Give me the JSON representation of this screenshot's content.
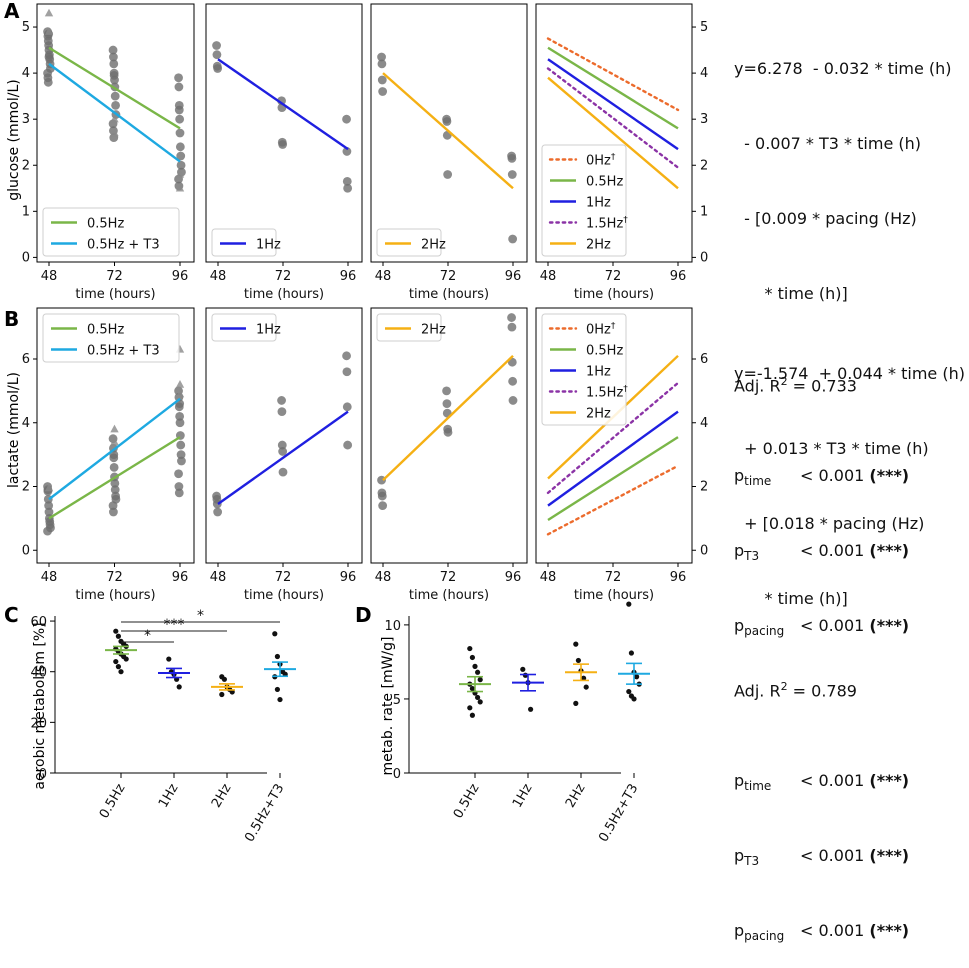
{
  "colors": {
    "c05": "#7ab648",
    "cT3": "#1ea9e1",
    "c1": "#1f1fe0",
    "c2": "#f5b014",
    "c0": "#ec6b2c",
    "c15": "#8b33a6",
    "point": "#6e6e6e"
  },
  "panels": {
    "A": {
      "label": "A",
      "ylabel": "glucose (mmol/L)"
    },
    "B": {
      "label": "B",
      "ylabel": "lactate (mmol/L)"
    },
    "C": {
      "label": "C",
      "ylabel": "aerobic metabolism [%]"
    },
    "D": {
      "label": "D",
      "ylabel": "metab. rate [mW/g]"
    }
  },
  "equations": {
    "A": {
      "lines": [
        "y=6.278  - 0.032 * time (h)",
        "  - 0.007 * T3 * time (h)",
        "  - [0.009 * pacing (Hz)",
        "      * time (h)]"
      ],
      "r2_prefix": "Adj. R",
      "r2_sup": "2",
      "r2_value": " = 0.733",
      "p": [
        {
          "base": "p",
          "sub": "time",
          "value": "< 0.001",
          "sig": "(***)"
        },
        {
          "base": "p",
          "sub": "T3",
          "value": "< 0.001",
          "sig": "(***)"
        },
        {
          "base": "p",
          "sub": "pacing",
          "value": "< 0.001",
          "sig": "(***)"
        }
      ]
    },
    "B": {
      "lines": [
        "y=-1.574  + 0.044 * time (h)",
        "  + 0.013 * T3 * time (h)",
        "  + [0.018 * pacing (Hz)",
        "      * time (h)]"
      ],
      "r2_prefix": "Adj. R",
      "r2_sup": "2",
      "r2_value": " = 0.789",
      "p": [
        {
          "base": "p",
          "sub": "time",
          "value": "< 0.001",
          "sig": "(***)"
        },
        {
          "base": "p",
          "sub": "T3",
          "value": "< 0.001",
          "sig": "(***)"
        },
        {
          "base": "p",
          "sub": "pacing",
          "value": "< 0.001",
          "sig": "(***)"
        }
      ]
    }
  },
  "chart_data": [
    {
      "id": "A",
      "type": "scatter",
      "xlabel": "time (hours)",
      "ylabel": "glucose (mmol/L)",
      "x_ticks": [
        48,
        72,
        96
      ],
      "y_ticks": [
        0,
        1,
        2,
        3,
        4,
        5
      ],
      "ylim": [
        -0.1,
        5.5
      ],
      "legend_position": "bottom-left",
      "subplots": [
        {
          "name": "0.5Hz / 0.5Hz + T3",
          "legend": [
            "0.5Hz",
            "0.5Hz + T3"
          ],
          "fits": [
            {
              "name": "0.5Hz",
              "color": "c05",
              "style": "solid",
              "y48": 4.55,
              "y96": 2.8
            },
            {
              "name": "0.5Hz + T3",
              "color": "cT3",
              "style": "solid",
              "y48": 4.2,
              "y96": 2.08
            }
          ],
          "points": {
            "48": [
              4.9,
              4.8,
              4.7,
              4.6,
              4.5,
              4.4,
              4.3,
              4.2,
              4.1,
              4.0,
              3.9,
              3.8,
              4.85,
              4.35
            ],
            "72": [
              4.5,
              4.35,
              4.2,
              4.0,
              3.85,
              3.7,
              3.5,
              3.3,
              3.1,
              2.9,
              2.75,
              2.6,
              3.95
            ],
            "96": [
              3.9,
              3.7,
              3.3,
              3.0,
              2.7,
              2.4,
              2.2,
              2.0,
              1.85,
              1.7,
              1.55,
              3.2
            ]
          },
          "triangles": {
            "48": [
              5.3,
              4.9
            ],
            "72": [
              2.7,
              3.0
            ],
            "96": [
              1.5,
              1.8
            ]
          }
        },
        {
          "name": "1Hz",
          "legend": [
            "1Hz"
          ],
          "fits": [
            {
              "name": "1Hz",
              "color": "c1",
              "style": "solid",
              "y48": 4.3,
              "y96": 2.35
            }
          ],
          "points": {
            "48": [
              4.6,
              4.4,
              4.15,
              4.1
            ],
            "72": [
              3.4,
              3.25,
              2.5,
              2.45
            ],
            "96": [
              3.0,
              2.3,
              1.65,
              1.5
            ]
          },
          "triangles": {}
        },
        {
          "name": "2Hz",
          "legend": [
            "2Hz"
          ],
          "fits": [
            {
              "name": "2Hz",
              "color": "c2",
              "style": "solid",
              "y48": 4.0,
              "y96": 1.5
            }
          ],
          "points": {
            "48": [
              4.35,
              4.2,
              3.85,
              3.6
            ],
            "72": [
              3.0,
              2.95,
              2.65,
              1.8
            ],
            "96": [
              2.2,
              2.15,
              1.8,
              0.4
            ]
          },
          "triangles": {}
        },
        {
          "name": "all",
          "legend": [
            "0Hz†",
            "0.5Hz",
            "1Hz",
            "1.5Hz†",
            "2Hz"
          ],
          "right_axis": true,
          "fits": [
            {
              "name": "0Hz†",
              "color": "c0",
              "style": "dotted",
              "y48": 4.75,
              "y96": 3.2
            },
            {
              "name": "0.5Hz",
              "color": "c05",
              "style": "solid",
              "y48": 4.55,
              "y96": 2.8
            },
            {
              "name": "1Hz",
              "color": "c1",
              "style": "solid",
              "y48": 4.3,
              "y96": 2.35
            },
            {
              "name": "1.5Hz†",
              "color": "c15",
              "style": "dotted",
              "y48": 4.1,
              "y96": 1.95
            },
            {
              "name": "2Hz",
              "color": "c2",
              "style": "solid",
              "y48": 3.9,
              "y96": 1.5
            }
          ],
          "points": {},
          "triangles": {}
        }
      ]
    },
    {
      "id": "B",
      "type": "scatter",
      "xlabel": "time (hours)",
      "ylabel": "lactate (mmol/L)",
      "x_ticks": [
        48,
        72,
        96
      ],
      "y_ticks": [
        0,
        2,
        4,
        6
      ],
      "ylim": [
        -0.4,
        7.6
      ],
      "legend_position": "top-left",
      "subplots": [
        {
          "name": "0.5Hz / 0.5Hz + T3",
          "legend": [
            "0.5Hz",
            "0.5Hz + T3"
          ],
          "fits": [
            {
              "name": "0.5Hz",
              "color": "c05",
              "style": "solid",
              "y48": 1.0,
              "y96": 3.55
            },
            {
              "name": "0.5Hz + T3",
              "color": "cT3",
              "style": "solid",
              "y48": 1.6,
              "y96": 4.75
            },
            {
              "name": "",
              "color": "c05",
              "style": "none",
              "y48": 0,
              "y96": 0
            }
          ],
          "points": {
            "48": [
              2.0,
              1.9,
              1.6,
              1.4,
              1.2,
              1.0,
              0.9,
              0.8,
              0.7,
              0.6,
              1.85
            ],
            "72": [
              3.5,
              3.2,
              2.9,
              2.6,
              2.3,
              2.1,
              1.9,
              1.7,
              1.6,
              1.4,
              1.2,
              3.0
            ],
            "96": [
              5.0,
              4.8,
              4.5,
              4.2,
              4.0,
              3.6,
              3.3,
              3.0,
              2.8,
              2.4,
              2.0,
              1.8,
              4.6
            ]
          },
          "triangles": {
            "48": [
              1.95
            ],
            "72": [
              3.8,
              3.4
            ],
            "96": [
              6.3,
              5.2,
              4.9
            ]
          }
        },
        {
          "name": "1Hz",
          "legend": [
            "1Hz"
          ],
          "fits": [
            {
              "name": "1Hz",
              "color": "c1",
              "style": "solid",
              "y48": 1.45,
              "y96": 4.35
            }
          ],
          "points": {
            "48": [
              1.7,
              1.6,
              1.45,
              1.2
            ],
            "72": [
              4.7,
              4.35,
              3.3,
              3.1,
              2.45
            ],
            "96": [
              6.1,
              5.6,
              4.5,
              3.3
            ]
          },
          "triangles": {}
        },
        {
          "name": "2Hz",
          "legend": [
            "2Hz"
          ],
          "fits": [
            {
              "name": "2Hz",
              "color": "c2",
              "style": "solid",
              "y48": 2.2,
              "y96": 6.1
            }
          ],
          "points": {
            "48": [
              2.2,
              1.8,
              1.7,
              1.4
            ],
            "72": [
              5.0,
              4.6,
              4.3,
              3.8,
              3.7
            ],
            "96": [
              7.3,
              7.0,
              5.9,
              5.3,
              4.7
            ]
          },
          "triangles": {}
        },
        {
          "name": "all",
          "legend": [
            "0Hz†",
            "0.5Hz",
            "1Hz",
            "1.5Hz†",
            "2Hz"
          ],
          "right_axis": true,
          "fits": [
            {
              "name": "0Hz†",
              "color": "c0",
              "style": "dotted",
              "y48": 0.5,
              "y96": 2.65
            },
            {
              "name": "0.5Hz",
              "color": "c05",
              "style": "solid",
              "y48": 0.95,
              "y96": 3.55
            },
            {
              "name": "1Hz",
              "color": "c1",
              "style": "solid",
              "y48": 1.4,
              "y96": 4.35
            },
            {
              "name": "1.5Hz†",
              "color": "c15",
              "style": "dotted",
              "y48": 1.8,
              "y96": 5.25
            },
            {
              "name": "2Hz",
              "color": "c2",
              "style": "solid",
              "y48": 2.25,
              "y96": 6.1
            }
          ],
          "points": {},
          "triangles": {}
        }
      ]
    },
    {
      "id": "C",
      "type": "scatter",
      "ylabel": "aerobic metabolism [%]",
      "categories": [
        "0.5Hz",
        "1Hz",
        "2Hz",
        "0.5Hz+T3"
      ],
      "colors": [
        "c05",
        "c1",
        "c2",
        "cT3"
      ],
      "ylim": [
        0,
        62
      ],
      "y_ticks": [
        0,
        20,
        40,
        60
      ],
      "means": [
        48.5,
        39.5,
        34.0,
        41.0
      ],
      "sem": [
        1.5,
        1.8,
        1.2,
        2.8
      ],
      "points": [
        [
          56,
          54,
          52,
          51,
          50,
          49,
          48,
          47,
          46,
          45,
          44,
          42,
          40
        ],
        [
          45,
          40,
          39,
          37,
          34
        ],
        [
          38,
          37,
          34,
          33,
          32,
          31
        ],
        [
          55,
          46,
          43,
          40,
          39,
          38,
          33,
          29
        ]
      ],
      "significance": [
        {
          "from": 0,
          "to": 1,
          "label": "*"
        },
        {
          "from": 0,
          "to": 2,
          "label": "***"
        },
        {
          "from": 0,
          "to": 3,
          "label": "*"
        }
      ]
    },
    {
      "id": "D",
      "type": "scatter",
      "ylabel": "metab. rate [mW/g]",
      "categories": [
        "0.5Hz",
        "1Hz",
        "2Hz",
        "0.5Hz+T3"
      ],
      "colors": [
        "c05",
        "c1",
        "c2",
        "cT3"
      ],
      "ylim": [
        0,
        10.6
      ],
      "y_ticks": [
        0,
        5,
        10
      ],
      "means": [
        6.0,
        6.1,
        6.8,
        6.7
      ],
      "sem": [
        0.5,
        0.55,
        0.55,
        0.7
      ],
      "points": [
        [
          8.4,
          7.8,
          7.2,
          6.8,
          6.3,
          6.0,
          5.7,
          5.4,
          5.1,
          4.8,
          4.4,
          3.9
        ],
        [
          7.0,
          6.6,
          6.1,
          4.3
        ],
        [
          8.7,
          7.6,
          6.9,
          6.4,
          5.8,
          4.7
        ],
        [
          11.4,
          8.1,
          6.8,
          6.5,
          6.0,
          5.5,
          5.2,
          5.0
        ]
      ],
      "significance": []
    }
  ]
}
